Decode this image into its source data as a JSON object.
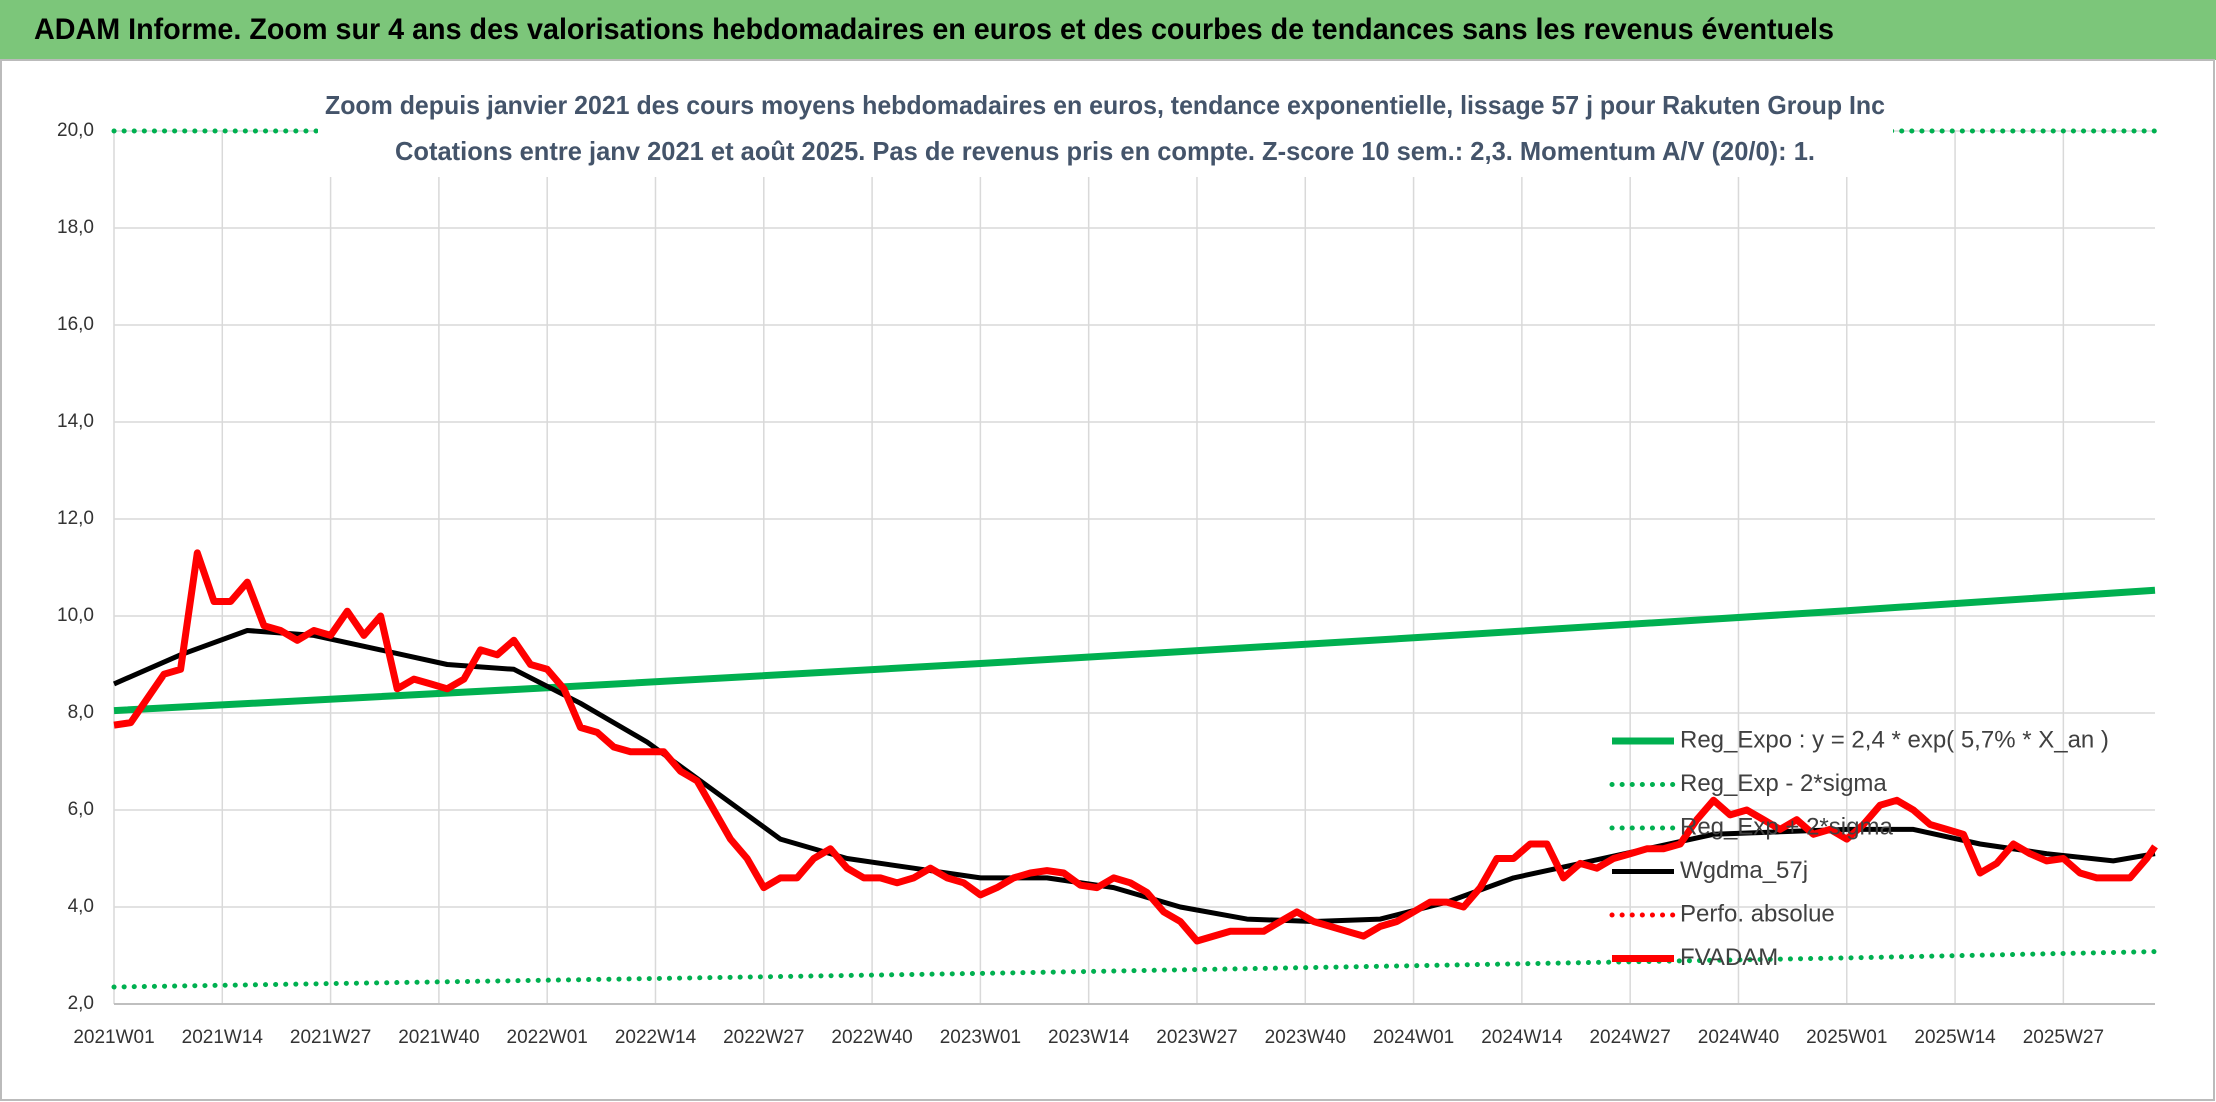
{
  "header": {
    "title": "ADAM Informe. Zoom sur 4 ans des valorisations hebdomadaires en euros et des courbes de tendances sans les revenus éventuels"
  },
  "chart_data": {
    "type": "line",
    "title": [
      "Zoom depuis janvier 2021 des cours moyens hebdomadaires en euros, tendance exponentielle, lissage 57 j pour Rakuten Group Inc",
      "Cotations entre janv 2021 et août 2025. Pas de revenus pris en compte. Z-score 10 sem.: 2,3. Momentum A/V (20/0): 1."
    ],
    "xlim": [
      0,
      245
    ],
    "xticks": [
      {
        "value": 0,
        "label": "2021W01"
      },
      {
        "value": 13,
        "label": "2021W14"
      },
      {
        "value": 26,
        "label": "2021W27"
      },
      {
        "value": 39,
        "label": "2021W40"
      },
      {
        "value": 52,
        "label": "2022W01"
      },
      {
        "value": 65,
        "label": "2022W14"
      },
      {
        "value": 78,
        "label": "2022W27"
      },
      {
        "value": 91,
        "label": "2022W40"
      },
      {
        "value": 104,
        "label": "2023W01"
      },
      {
        "value": 117,
        "label": "2023W14"
      },
      {
        "value": 130,
        "label": "2023W27"
      },
      {
        "value": 143,
        "label": "2023W40"
      },
      {
        "value": 156,
        "label": "2024W01"
      },
      {
        "value": 169,
        "label": "2024W14"
      },
      {
        "value": 182,
        "label": "2024W27"
      },
      {
        "value": 195,
        "label": "2024W40"
      },
      {
        "value": 208,
        "label": "2025W01"
      },
      {
        "value": 221,
        "label": "2025W14"
      },
      {
        "value": 234,
        "label": "2025W27"
      }
    ],
    "ylim": [
      2,
      20
    ],
    "yticks": [
      {
        "value": 2,
        "label": "2,0"
      },
      {
        "value": 4,
        "label": "4,0"
      },
      {
        "value": 6,
        "label": "6,0"
      },
      {
        "value": 8,
        "label": "8,0"
      },
      {
        "value": 10,
        "label": "10,0"
      },
      {
        "value": 12,
        "label": "12,0"
      },
      {
        "value": 14,
        "label": "14,0"
      },
      {
        "value": 16,
        "label": "16,0"
      },
      {
        "value": 18,
        "label": "18,0"
      },
      {
        "value": 20,
        "label": "20,0"
      }
    ],
    "grid": true,
    "series": [
      {
        "name": "Reg_Expo : y = 2,4 * exp( 5,7% *  X_an )",
        "color": "#00b050",
        "style": "solid",
        "x": [
          0,
          52,
          104,
          156,
          208,
          245
        ],
        "values": [
          8.05,
          8.52,
          9.02,
          9.55,
          10.11,
          10.53
        ]
      },
      {
        "name": "Reg_Exp - 2*sigma",
        "color": "#00b050",
        "style": "dotted",
        "x": [
          0,
          52,
          104,
          156,
          208,
          245
        ],
        "values": [
          2.35,
          2.49,
          2.63,
          2.79,
          2.95,
          3.08
        ]
      },
      {
        "name": "Reg_Exp + 2*sigma",
        "color": "#00b050",
        "style": "dotted",
        "x": [
          0,
          245
        ],
        "values": [
          20,
          20
        ]
      },
      {
        "name": "Wgdma_57j",
        "color": "#000000",
        "style": "solid",
        "x": [
          0,
          8,
          16,
          24,
          32,
          40,
          48,
          56,
          64,
          72,
          80,
          88,
          96,
          104,
          112,
          120,
          128,
          136,
          144,
          152,
          160,
          168,
          176,
          184,
          192,
          200,
          208,
          216,
          224,
          232,
          240,
          245
        ],
        "values": [
          8.6,
          9.2,
          9.7,
          9.6,
          9.3,
          9.0,
          8.9,
          8.2,
          7.4,
          6.4,
          5.4,
          5.0,
          4.8,
          4.6,
          4.6,
          4.4,
          4.0,
          3.75,
          3.7,
          3.75,
          4.1,
          4.6,
          4.9,
          5.2,
          5.5,
          5.55,
          5.6,
          5.6,
          5.3,
          5.1,
          4.95,
          5.1
        ]
      },
      {
        "name": "Perfo. absolue",
        "color": "#ff0000",
        "style": "dotted"
      },
      {
        "name": "FVADAM",
        "color": "#ff0000",
        "style": "solid",
        "x": [
          0,
          2,
          4,
          6,
          8,
          10,
          12,
          14,
          16,
          18,
          20,
          22,
          24,
          26,
          28,
          30,
          32,
          34,
          36,
          38,
          40,
          42,
          44,
          46,
          48,
          50,
          52,
          54,
          56,
          58,
          60,
          62,
          64,
          66,
          68,
          70,
          72,
          74,
          76,
          78,
          80,
          82,
          84,
          86,
          88,
          90,
          92,
          94,
          96,
          98,
          100,
          102,
          104,
          106,
          108,
          110,
          112,
          114,
          116,
          118,
          120,
          122,
          124,
          126,
          128,
          130,
          132,
          134,
          136,
          138,
          140,
          142,
          144,
          146,
          148,
          150,
          152,
          154,
          156,
          158,
          160,
          162,
          164,
          166,
          168,
          170,
          172,
          174,
          176,
          178,
          180,
          182,
          184,
          186,
          188,
          190,
          192,
          194,
          196,
          198,
          200,
          202,
          204,
          206,
          208,
          210,
          212,
          214,
          216,
          218,
          220,
          222,
          224,
          226,
          228,
          230,
          232,
          234,
          236,
          238,
          240,
          242,
          244,
          245
        ],
        "values": [
          7.75,
          7.8,
          8.3,
          8.8,
          8.9,
          11.3,
          10.3,
          10.3,
          10.7,
          9.8,
          9.7,
          9.5,
          9.7,
          9.6,
          10.1,
          9.6,
          10.0,
          8.5,
          8.7,
          8.6,
          8.5,
          8.7,
          9.3,
          9.2,
          9.5,
          9.0,
          8.9,
          8.5,
          7.7,
          7.6,
          7.3,
          7.2,
          7.2,
          7.2,
          6.8,
          6.6,
          6.0,
          5.4,
          5.0,
          4.4,
          4.6,
          4.6,
          5.0,
          5.2,
          4.8,
          4.6,
          4.6,
          4.5,
          4.6,
          4.8,
          4.6,
          4.5,
          4.25,
          4.4,
          4.6,
          4.7,
          4.75,
          4.7,
          4.45,
          4.4,
          4.6,
          4.5,
          4.3,
          3.9,
          3.7,
          3.3,
          3.4,
          3.5,
          3.5,
          3.5,
          3.7,
          3.9,
          3.7,
          3.6,
          3.5,
          3.4,
          3.6,
          3.7,
          3.9,
          4.1,
          4.1,
          4.0,
          4.4,
          5.0,
          5.0,
          5.3,
          5.3,
          4.6,
          4.9,
          4.8,
          5.0,
          5.1,
          5.2,
          5.2,
          5.3,
          5.8,
          6.2,
          5.9,
          6.0,
          5.8,
          5.6,
          5.8,
          5.5,
          5.6,
          5.4,
          5.7,
          6.1,
          6.2,
          6.0,
          5.7,
          5.6,
          5.5,
          4.7,
          4.9,
          5.3,
          5.1,
          4.95,
          5.0,
          4.7,
          4.6,
          4.6,
          4.6,
          5.0,
          5.25
        ]
      }
    ]
  }
}
